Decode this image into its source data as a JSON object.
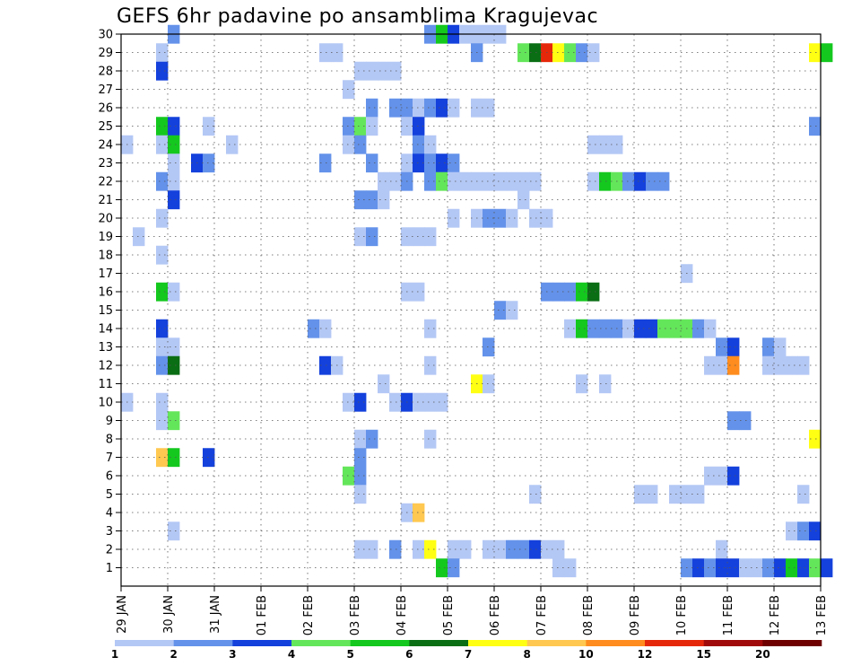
{
  "chart_data": {
    "type": "heatmap",
    "title": "GEFS 6hr padavine po ansamblima Kragujevac",
    "x_tick_labels": [
      "29 JAN",
      "30 JAN",
      "31 JAN",
      "01 FEB",
      "02 FEB",
      "03 FEB",
      "04 FEB",
      "05 FEB",
      "06 FEB",
      "07 FEB",
      "08 FEB",
      "09 FEB",
      "10 FEB",
      "11 FEB",
      "12 FEB",
      "13 FEB"
    ],
    "y_tick_labels": [
      "1",
      "2",
      "3",
      "4",
      "5",
      "6",
      "7",
      "8",
      "9",
      "10",
      "11",
      "12",
      "13",
      "14",
      "15",
      "16",
      "17",
      "18",
      "19",
      "20",
      "21",
      "22",
      "23",
      "24",
      "25",
      "26",
      "27",
      "28",
      "29",
      "30"
    ],
    "x_range_days": [
      0,
      15
    ],
    "y_range": [
      0,
      30
    ],
    "time_step_hours": 6,
    "grid": true,
    "legend_position": "bottom",
    "colorbar": {
      "bounds": [
        "1",
        "2",
        "3",
        "4",
        "5",
        "6",
        "7",
        "8",
        "10",
        "12",
        "15",
        "20"
      ],
      "colors": [
        "#b4c8f5",
        "#6492ea",
        "#1441dc",
        "#64e65a",
        "#14c81e",
        "#0a6e14",
        "#ffff14",
        "#ffc850",
        "#ff8c1e",
        "#e6280a",
        "#a00a0a",
        "#6e0000"
      ]
    },
    "cells": [
      [
        1.0,
        30,
        1
      ],
      [
        6.5,
        30,
        1
      ],
      [
        6.75,
        30,
        4
      ],
      [
        7.0,
        30,
        2
      ],
      [
        7.25,
        30,
        0
      ],
      [
        7.5,
        30,
        0
      ],
      [
        7.75,
        30,
        0
      ],
      [
        8.0,
        30,
        0
      ],
      [
        0.75,
        29,
        0
      ],
      [
        4.25,
        29,
        0
      ],
      [
        4.5,
        29,
        0
      ],
      [
        7.5,
        29,
        1
      ],
      [
        8.5,
        29,
        3
      ],
      [
        8.75,
        29,
        5
      ],
      [
        9.0,
        29,
        9
      ],
      [
        9.25,
        29,
        6
      ],
      [
        9.5,
        29,
        3
      ],
      [
        9.75,
        29,
        1
      ],
      [
        10.0,
        29,
        0
      ],
      [
        14.75,
        29,
        6
      ],
      [
        15.0,
        29,
        4
      ],
      [
        0.75,
        28,
        2
      ],
      [
        5.0,
        28,
        0
      ],
      [
        5.25,
        28,
        0
      ],
      [
        5.5,
        28,
        0
      ],
      [
        5.75,
        28,
        0
      ],
      [
        4.75,
        27,
        0
      ],
      [
        5.25,
        26,
        1
      ],
      [
        5.75,
        26,
        1
      ],
      [
        6.0,
        26,
        1
      ],
      [
        6.25,
        26,
        0
      ],
      [
        6.5,
        26,
        1
      ],
      [
        6.75,
        26,
        2
      ],
      [
        7.0,
        26,
        0
      ],
      [
        7.5,
        26,
        0
      ],
      [
        7.75,
        26,
        0
      ],
      [
        0.75,
        25,
        4
      ],
      [
        1.0,
        25,
        2
      ],
      [
        1.75,
        25,
        0
      ],
      [
        4.75,
        25,
        1
      ],
      [
        5.0,
        25,
        3
      ],
      [
        5.25,
        25,
        0
      ],
      [
        6.0,
        25,
        0
      ],
      [
        6.25,
        25,
        2
      ],
      [
        14.75,
        25,
        1
      ],
      [
        0.0,
        24,
        0
      ],
      [
        0.75,
        24,
        0
      ],
      [
        1.0,
        24,
        4
      ],
      [
        2.25,
        24,
        0
      ],
      [
        4.75,
        24,
        0
      ],
      [
        5.0,
        24,
        1
      ],
      [
        6.25,
        24,
        1
      ],
      [
        6.5,
        24,
        0
      ],
      [
        10.0,
        24,
        0
      ],
      [
        10.25,
        24,
        0
      ],
      [
        10.5,
        24,
        0
      ],
      [
        1.0,
        23,
        0
      ],
      [
        1.5,
        23,
        2
      ],
      [
        1.75,
        23,
        1
      ],
      [
        4.25,
        23,
        1
      ],
      [
        5.25,
        23,
        1
      ],
      [
        6.0,
        23,
        0
      ],
      [
        6.25,
        23,
        2
      ],
      [
        6.5,
        23,
        1
      ],
      [
        6.75,
        23,
        2
      ],
      [
        7.0,
        23,
        1
      ],
      [
        0.75,
        22,
        1
      ],
      [
        1.0,
        22,
        0
      ],
      [
        5.5,
        22,
        0
      ],
      [
        5.75,
        22,
        0
      ],
      [
        6.0,
        22,
        1
      ],
      [
        6.5,
        22,
        1
      ],
      [
        6.75,
        22,
        3
      ],
      [
        7.0,
        22,
        0
      ],
      [
        7.25,
        22,
        0
      ],
      [
        7.5,
        22,
        0
      ],
      [
        7.75,
        22,
        0
      ],
      [
        8.0,
        22,
        0
      ],
      [
        8.25,
        22,
        0
      ],
      [
        8.5,
        22,
        0
      ],
      [
        8.75,
        22,
        0
      ],
      [
        10.0,
        22,
        0
      ],
      [
        10.25,
        22,
        4
      ],
      [
        10.5,
        22,
        3
      ],
      [
        10.75,
        22,
        1
      ],
      [
        11.0,
        22,
        2
      ],
      [
        11.25,
        22,
        1
      ],
      [
        11.5,
        22,
        1
      ],
      [
        1.0,
        21,
        2
      ],
      [
        5.0,
        21,
        1
      ],
      [
        5.25,
        21,
        1
      ],
      [
        5.5,
        21,
        0
      ],
      [
        8.5,
        21,
        0
      ],
      [
        0.75,
        20,
        0
      ],
      [
        7.0,
        20,
        0
      ],
      [
        7.5,
        20,
        0
      ],
      [
        7.75,
        20,
        1
      ],
      [
        8.0,
        20,
        1
      ],
      [
        8.25,
        20,
        0
      ],
      [
        8.75,
        20,
        0
      ],
      [
        9.0,
        20,
        0
      ],
      [
        0.25,
        19,
        0
      ],
      [
        5.0,
        19,
        0
      ],
      [
        5.25,
        19,
        1
      ],
      [
        6.0,
        19,
        0
      ],
      [
        6.25,
        19,
        0
      ],
      [
        6.5,
        19,
        0
      ],
      [
        0.75,
        18,
        0
      ],
      [
        12.0,
        17,
        0
      ],
      [
        0.75,
        16,
        4
      ],
      [
        1.0,
        16,
        0
      ],
      [
        6.0,
        16,
        0
      ],
      [
        6.25,
        16,
        0
      ],
      [
        9.0,
        16,
        1
      ],
      [
        9.25,
        16,
        1
      ],
      [
        9.5,
        16,
        1
      ],
      [
        9.75,
        16,
        4
      ],
      [
        10.0,
        16,
        5
      ],
      [
        8.0,
        15,
        1
      ],
      [
        8.25,
        15,
        0
      ],
      [
        0.75,
        14,
        2
      ],
      [
        4.0,
        14,
        1
      ],
      [
        4.25,
        14,
        0
      ],
      [
        6.5,
        14,
        0
      ],
      [
        9.5,
        14,
        0
      ],
      [
        9.75,
        14,
        4
      ],
      [
        10.0,
        14,
        1
      ],
      [
        10.25,
        14,
        1
      ],
      [
        10.5,
        14,
        1
      ],
      [
        10.75,
        14,
        0
      ],
      [
        11.0,
        14,
        2
      ],
      [
        11.25,
        14,
        2
      ],
      [
        11.5,
        14,
        3
      ],
      [
        11.75,
        14,
        3
      ],
      [
        12.0,
        14,
        3
      ],
      [
        12.25,
        14,
        1
      ],
      [
        12.5,
        14,
        0
      ],
      [
        0.75,
        13,
        0
      ],
      [
        1.0,
        13,
        0
      ],
      [
        7.75,
        13,
        1
      ],
      [
        12.75,
        13,
        1
      ],
      [
        13.0,
        13,
        2
      ],
      [
        13.75,
        13,
        1
      ],
      [
        14.0,
        13,
        0
      ],
      [
        0.75,
        12,
        1
      ],
      [
        1.0,
        12,
        5
      ],
      [
        4.25,
        12,
        2
      ],
      [
        4.5,
        12,
        0
      ],
      [
        6.5,
        12,
        0
      ],
      [
        12.5,
        12,
        0
      ],
      [
        12.75,
        12,
        0
      ],
      [
        13.0,
        12,
        8
      ],
      [
        13.75,
        12,
        0
      ],
      [
        14.0,
        12,
        0
      ],
      [
        14.25,
        12,
        0
      ],
      [
        14.5,
        12,
        0
      ],
      [
        5.5,
        11,
        0
      ],
      [
        7.5,
        11,
        6
      ],
      [
        7.75,
        11,
        0
      ],
      [
        9.75,
        11,
        0
      ],
      [
        10.25,
        11,
        0
      ],
      [
        0.0,
        10,
        0
      ],
      [
        0.75,
        10,
        0
      ],
      [
        4.75,
        10,
        0
      ],
      [
        5.0,
        10,
        2
      ],
      [
        5.75,
        10,
        0
      ],
      [
        6.0,
        10,
        2
      ],
      [
        6.25,
        10,
        0
      ],
      [
        6.5,
        10,
        0
      ],
      [
        6.75,
        10,
        0
      ],
      [
        0.75,
        9,
        0
      ],
      [
        1.0,
        9,
        3
      ],
      [
        13.0,
        9,
        1
      ],
      [
        13.25,
        9,
        1
      ],
      [
        5.0,
        8,
        0
      ],
      [
        5.25,
        8,
        1
      ],
      [
        6.5,
        8,
        0
      ],
      [
        14.75,
        8,
        6
      ],
      [
        0.75,
        7,
        7
      ],
      [
        1.0,
        7,
        4
      ],
      [
        1.75,
        7,
        2
      ],
      [
        5.0,
        7,
        1
      ],
      [
        4.75,
        6,
        3
      ],
      [
        5.0,
        6,
        1
      ],
      [
        12.5,
        6,
        0
      ],
      [
        12.75,
        6,
        0
      ],
      [
        13.0,
        6,
        2
      ],
      [
        5.0,
        5,
        0
      ],
      [
        8.75,
        5,
        0
      ],
      [
        11.0,
        5,
        0
      ],
      [
        11.25,
        5,
        0
      ],
      [
        11.75,
        5,
        0
      ],
      [
        12.0,
        5,
        0
      ],
      [
        12.25,
        5,
        0
      ],
      [
        14.5,
        5,
        0
      ],
      [
        6.0,
        4,
        0
      ],
      [
        6.25,
        4,
        7
      ],
      [
        1.0,
        3,
        0
      ],
      [
        14.25,
        3,
        0
      ],
      [
        14.5,
        3,
        1
      ],
      [
        14.75,
        3,
        2
      ],
      [
        5.0,
        2,
        0
      ],
      [
        5.25,
        2,
        0
      ],
      [
        5.75,
        2,
        1
      ],
      [
        6.25,
        2,
        0
      ],
      [
        6.5,
        2,
        6
      ],
      [
        7.0,
        2,
        0
      ],
      [
        7.25,
        2,
        0
      ],
      [
        7.75,
        2,
        0
      ],
      [
        8.0,
        2,
        0
      ],
      [
        8.25,
        2,
        1
      ],
      [
        8.5,
        2,
        1
      ],
      [
        8.75,
        2,
        2
      ],
      [
        9.0,
        2,
        0
      ],
      [
        9.25,
        2,
        0
      ],
      [
        12.75,
        2,
        0
      ],
      [
        6.75,
        1,
        4
      ],
      [
        7.0,
        1,
        1
      ],
      [
        9.25,
        1,
        0
      ],
      [
        9.5,
        1,
        0
      ],
      [
        12.0,
        1,
        1
      ],
      [
        12.25,
        1,
        2
      ],
      [
        12.5,
        1,
        1
      ],
      [
        12.75,
        1,
        2
      ],
      [
        13.0,
        1,
        2
      ],
      [
        13.25,
        1,
        0
      ],
      [
        13.5,
        1,
        0
      ],
      [
        13.75,
        1,
        1
      ],
      [
        14.0,
        1,
        2
      ],
      [
        14.25,
        1,
        4
      ],
      [
        14.5,
        1,
        2
      ],
      [
        14.75,
        1,
        3
      ],
      [
        15.0,
        1,
        2
      ]
    ]
  }
}
